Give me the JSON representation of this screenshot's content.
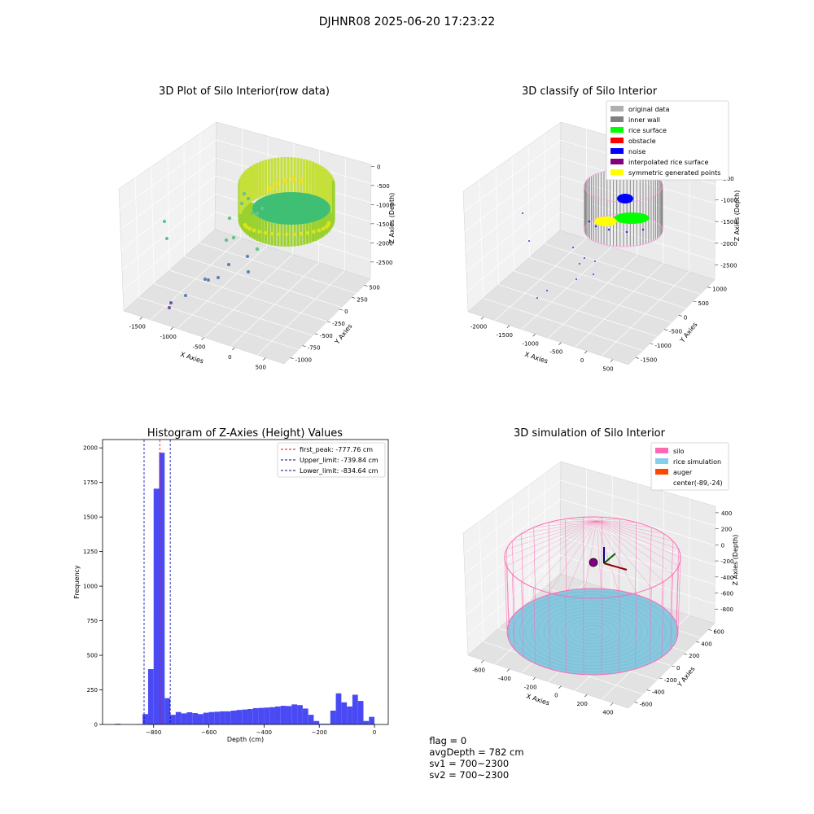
{
  "suptitle": "DJHNR08 2025-06-20 17:23:22",
  "chart_data": [
    {
      "type": "scatter",
      "title": "3D Plot of Silo Interior(row data)",
      "xlabel": "X Axies",
      "ylabel": "Y Axies",
      "zlabel": "Z Axies (Depth)",
      "x_ticks": [
        "-1500",
        "-1000",
        "-500",
        "0",
        "500"
      ],
      "y_ticks": [
        "-1000",
        "-750",
        "-500",
        "-250",
        "0",
        "250",
        "500"
      ],
      "z_ticks": [
        "0",
        "-500",
        "-1000",
        "-1500",
        "-2000",
        "-2500"
      ]
    },
    {
      "type": "scatter",
      "title": "3D classify of Silo Interior",
      "xlabel": "X Axies",
      "ylabel": "Y Axies",
      "zlabel": "Z Axies (Depth)",
      "x_ticks": [
        "-2000",
        "-1500",
        "-1000",
        "-500",
        "0",
        "500"
      ],
      "y_ticks": [
        "-1500",
        "-1000",
        "-500",
        "0",
        "500",
        "1000"
      ],
      "z_ticks": [
        "-500",
        "-1000",
        "-1500",
        "-2000",
        "-2500"
      ],
      "legend": [
        {
          "label": "original data",
          "color": "#b0b0b0"
        },
        {
          "label": "inner wall",
          "color": "#808080"
        },
        {
          "label": "rice surface",
          "color": "#00ff00"
        },
        {
          "label": "obstacle",
          "color": "#ff0000"
        },
        {
          "label": "noise",
          "color": "#0000ff"
        },
        {
          "label": "interpolated rice surface",
          "color": "#800080"
        },
        {
          "label": "symmetric generated points",
          "color": "#ffff00"
        }
      ],
      "legend_position": "top-right"
    },
    {
      "type": "bar",
      "title": "Histogram of Z-Axies (Height) Values",
      "xlabel": "Depth (cm)",
      "ylabel": "Frequency",
      "xlim": [
        -985,
        50
      ],
      "ylim": [
        0,
        2060
      ],
      "x_ticks": [
        -800,
        -600,
        -400,
        -200,
        0
      ],
      "y_ticks": [
        0,
        250,
        500,
        750,
        1000,
        1250,
        1500,
        1750,
        2000
      ],
      "bin_width": 20,
      "bins": [
        {
          "x": -940,
          "v": 5
        },
        {
          "x": -860,
          "v": 3
        },
        {
          "x": -840,
          "v": 75
        },
        {
          "x": -820,
          "v": 400
        },
        {
          "x": -800,
          "v": 1705
        },
        {
          "x": -780,
          "v": 1965
        },
        {
          "x": -760,
          "v": 190
        },
        {
          "x": -740,
          "v": 70
        },
        {
          "x": -720,
          "v": 90
        },
        {
          "x": -700,
          "v": 80
        },
        {
          "x": -680,
          "v": 88
        },
        {
          "x": -660,
          "v": 82
        },
        {
          "x": -640,
          "v": 75
        },
        {
          "x": -620,
          "v": 85
        },
        {
          "x": -600,
          "v": 90
        },
        {
          "x": -580,
          "v": 92
        },
        {
          "x": -560,
          "v": 95
        },
        {
          "x": -540,
          "v": 95
        },
        {
          "x": -520,
          "v": 100
        },
        {
          "x": -500,
          "v": 105
        },
        {
          "x": -480,
          "v": 108
        },
        {
          "x": -460,
          "v": 112
        },
        {
          "x": -440,
          "v": 118
        },
        {
          "x": -420,
          "v": 120
        },
        {
          "x": -400,
          "v": 122
        },
        {
          "x": -380,
          "v": 125
        },
        {
          "x": -360,
          "v": 130
        },
        {
          "x": -340,
          "v": 135
        },
        {
          "x": -320,
          "v": 133
        },
        {
          "x": -300,
          "v": 145
        },
        {
          "x": -280,
          "v": 140
        },
        {
          "x": -260,
          "v": 115
        },
        {
          "x": -240,
          "v": 70
        },
        {
          "x": -220,
          "v": 25
        },
        {
          "x": -200,
          "v": 5
        },
        {
          "x": -180,
          "v": 5
        },
        {
          "x": -160,
          "v": 100
        },
        {
          "x": -140,
          "v": 225
        },
        {
          "x": -120,
          "v": 160
        },
        {
          "x": -100,
          "v": 130
        },
        {
          "x": -80,
          "v": 215
        },
        {
          "x": -60,
          "v": 170
        },
        {
          "x": -40,
          "v": 25
        },
        {
          "x": -20,
          "v": 55
        }
      ],
      "lines": [
        {
          "label": "first_peak: -777.76 cm",
          "x": -777.76,
          "color": "#ff0000"
        },
        {
          "label": "Upper_limit: -739.84 cm",
          "x": -739.84,
          "color": "#0000aa"
        },
        {
          "label": "Lower_limit: -834.64 cm",
          "x": -834.64,
          "color": "#0000aa"
        }
      ],
      "bar_color": "#4a4af5",
      "legend_position": "top-right"
    },
    {
      "type": "scatter",
      "title": "3D simulation of Silo Interior",
      "xlabel": "X Axies",
      "ylabel": "Y Axies",
      "zlabel": "Z Axies (Depth)",
      "x_ticks": [
        "-600",
        "-400",
        "-200",
        "0",
        "200",
        "400"
      ],
      "y_ticks": [
        "-600",
        "-400",
        "-200",
        "0",
        "200",
        "400",
        "600"
      ],
      "z_ticks": [
        "400",
        "200",
        "0",
        "-200",
        "-400",
        "-600",
        "-800"
      ],
      "legend": [
        {
          "label": "silo",
          "color": "#ff69b4"
        },
        {
          "label": "rice simulation",
          "color": "#87ceeb"
        },
        {
          "label": "auger",
          "color": "#ff4500"
        },
        {
          "label": "center(-89,-24)",
          "color": ""
        }
      ],
      "legend_position": "top-right"
    }
  ],
  "footer": {
    "flag": "flag = 0",
    "avg": "avgDepth = 782 cm",
    "sv1": "sv1 = 700~2300",
    "sv2": "sv2 = 700~2300"
  }
}
